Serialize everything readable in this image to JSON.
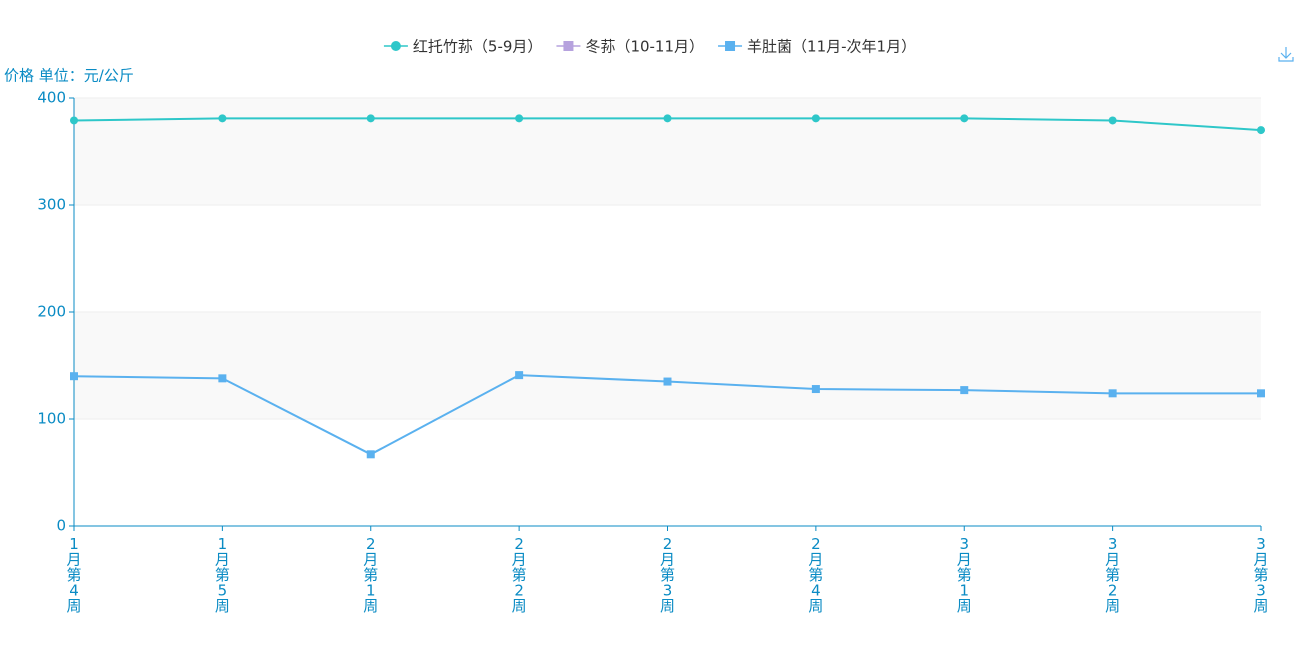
{
  "chart_data": {
    "type": "line",
    "y_label": "价格 单位：元/公斤",
    "categories": [
      "1月第4周",
      "1月第5周",
      "2月第1周",
      "2月第2周",
      "2月第3周",
      "2月第4周",
      "3月第1周",
      "3月第2周",
      "3月第3周"
    ],
    "series": [
      {
        "name": "红托竹荪（5-9月）",
        "color": "#2ec7c9",
        "marker": "circle",
        "values": [
          379,
          381,
          381,
          381,
          381,
          381,
          381,
          379,
          370
        ]
      },
      {
        "name": "冬荪（10-11月）",
        "color": "#b6a2de",
        "marker": "square",
        "values": [
          null,
          null,
          null,
          null,
          null,
          null,
          null,
          null,
          null
        ]
      },
      {
        "name": "羊肚菌（11月-次年1月）",
        "color": "#5ab1ef",
        "marker": "square",
        "values": [
          140,
          138,
          67,
          141,
          135,
          128,
          127,
          124,
          124
        ]
      }
    ],
    "ylim": [
      0,
      400
    ],
    "yticks": [
      0,
      100,
      200,
      300,
      400
    ],
    "grid": true,
    "split_area": true,
    "legend": "top"
  }
}
